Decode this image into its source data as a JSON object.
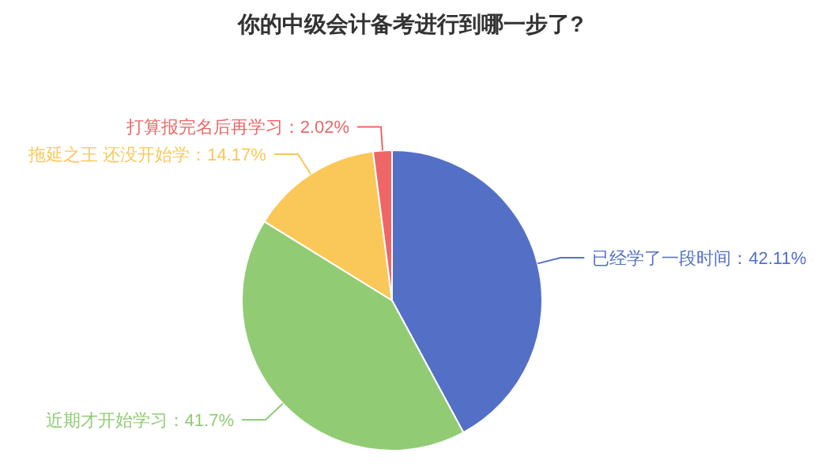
{
  "chart_data": {
    "type": "pie",
    "title": "你的中级会计备考进行到哪一步了?",
    "categories": [
      "已经学了一段时间",
      "近期才开始学习",
      "拖延之王 还没开始学",
      "打算报完名后再学习"
    ],
    "values": [
      42.11,
      41.7,
      14.17,
      2.02
    ],
    "value_labels": [
      "：42.11%",
      "：41.7%",
      "：14.17%",
      "：2.02%"
    ],
    "colors": [
      "#5470c6",
      "#91cc75",
      "#fac858",
      "#ee6666"
    ]
  }
}
